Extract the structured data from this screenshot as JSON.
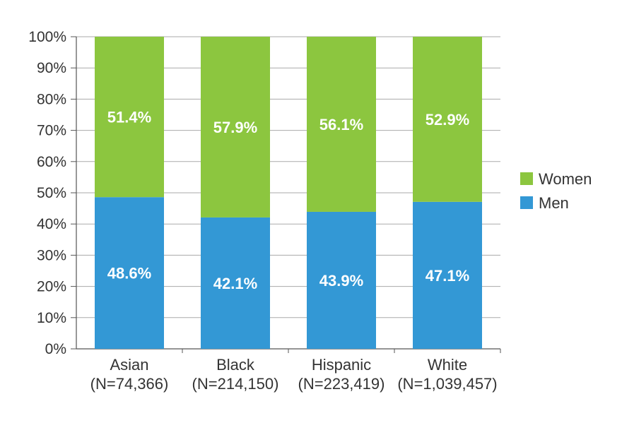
{
  "chart_data": {
    "type": "bar",
    "stacked": true,
    "percent_stacked": true,
    "categories": [
      "Asian",
      "Black",
      "Hispanic",
      "White"
    ],
    "category_sublabels": [
      "(N=74,366)",
      "(N=214,150)",
      "(N=223,419)",
      "(N=1,039,457)"
    ],
    "series": [
      {
        "name": "Men",
        "values": [
          48.6,
          42.1,
          43.9,
          47.1
        ],
        "labels": [
          "48.6%",
          "42.1%",
          "43.9%",
          "47.1%"
        ],
        "color": "#3398d5"
      },
      {
        "name": "Women",
        "values": [
          51.4,
          57.9,
          56.1,
          52.9
        ],
        "labels": [
          "51.4%",
          "57.9%",
          "56.1%",
          "52.9%"
        ],
        "color": "#8cc63f"
      }
    ],
    "legend_order": [
      "Women",
      "Men"
    ],
    "legend_position": "right",
    "ylim": [
      0,
      100
    ],
    "yticks": [
      "0%",
      "10%",
      "20%",
      "30%",
      "40%",
      "50%",
      "60%",
      "70%",
      "80%",
      "90%",
      "100%"
    ],
    "grid": true,
    "grid_color": "#aaaaaa",
    "title": "",
    "xlabel": "",
    "ylabel": ""
  }
}
